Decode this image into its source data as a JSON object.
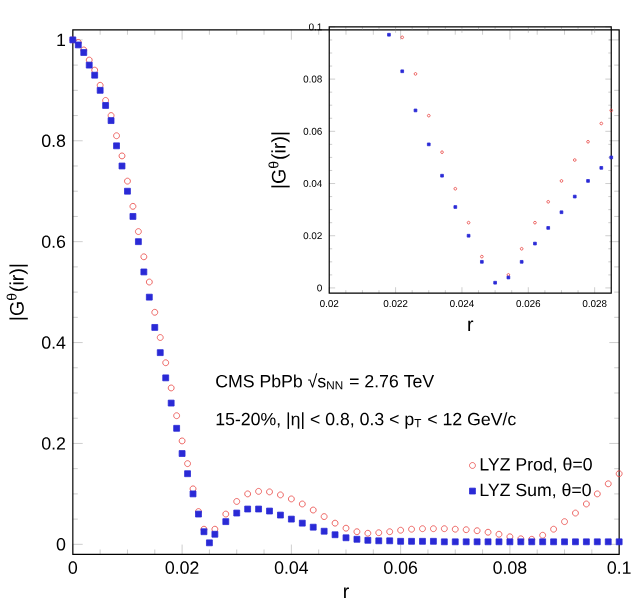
{
  "chart_data": [
    {
      "type": "scatter",
      "xlabel": "r",
      "ylabel": "|G$^{θ}$(ir)|",
      "xlim": [
        0,
        0.1
      ],
      "ylim": [
        -0.02,
        1.02
      ],
      "xticks": [
        0,
        0.02,
        0.04,
        0.06,
        0.08,
        0.1
      ],
      "yticks": [
        0,
        0.2,
        0.4,
        0.6,
        0.8,
        1
      ],
      "annotations": [
        "CMS   PbPb √s$_{NN}$ = 2.76 TeV",
        "15-20%,  |η| < 0.8,  0.3 < p$_{T}$ < 12 GeV/c"
      ],
      "legend": "bottom right",
      "series": [
        {
          "name": "LYZ Prod, θ=0",
          "color": "#e8413f",
          "marker": "circle",
          "x": [
            0,
            0.001,
            0.002,
            0.003,
            0.004,
            0.005,
            0.006,
            0.007,
            0.008,
            0.009,
            0.01,
            0.011,
            0.012,
            0.013,
            0.014,
            0.015,
            0.016,
            0.017,
            0.018,
            0.019,
            0.02,
            0.021,
            0.022,
            0.023,
            0.024,
            0.025,
            0.026,
            0.028,
            0.03,
            0.032,
            0.034,
            0.036,
            0.038,
            0.04,
            0.042,
            0.044,
            0.046,
            0.048,
            0.05,
            0.052,
            0.054,
            0.056,
            0.058,
            0.06,
            0.062,
            0.064,
            0.066,
            0.068,
            0.07,
            0.072,
            0.074,
            0.076,
            0.078,
            0.08,
            0.082,
            0.084,
            0.086,
            0.088,
            0.09,
            0.092,
            0.094,
            0.096,
            0.098,
            0.1
          ],
          "values": [
            1,
            0.995,
            0.98,
            0.96,
            0.94,
            0.91,
            0.88,
            0.85,
            0.81,
            0.77,
            0.72,
            0.67,
            0.62,
            0.57,
            0.52,
            0.46,
            0.41,
            0.36,
            0.31,
            0.255,
            0.205,
            0.16,
            0.11,
            0.065,
            0.03,
            null,
            0.03,
            0.06,
            0.085,
            0.1,
            0.105,
            0.104,
            0.098,
            0.09,
            0.08,
            0.068,
            0.055,
            0.042,
            0.032,
            0.025,
            0.022,
            0.023,
            0.025,
            0.028,
            0.03,
            0.031,
            0.031,
            0.031,
            0.03,
            0.029,
            0.027,
            0.024,
            0.02,
            0.015,
            0.011,
            0.01,
            0.018,
            0.03,
            0.045,
            0.062,
            0.08,
            0.1,
            0.12,
            0.14
          ]
        },
        {
          "name": "LYZ Sum, θ=0",
          "color": "#2a2ad6",
          "marker": "square",
          "x": [
            0,
            0.001,
            0.002,
            0.003,
            0.004,
            0.005,
            0.006,
            0.007,
            0.008,
            0.009,
            0.01,
            0.011,
            0.012,
            0.013,
            0.014,
            0.015,
            0.016,
            0.017,
            0.018,
            0.019,
            0.02,
            0.021,
            0.022,
            0.023,
            0.024,
            0.025,
            0.026,
            0.028,
            0.03,
            0.032,
            0.034,
            0.036,
            0.038,
            0.04,
            0.042,
            0.044,
            0.046,
            0.048,
            0.05,
            0.052,
            0.054,
            0.056,
            0.058,
            0.06,
            0.062,
            0.064,
            0.066,
            0.068,
            0.07,
            0.072,
            0.074,
            0.076,
            0.078,
            0.08,
            0.082,
            0.084,
            0.086,
            0.088,
            0.09,
            0.092,
            0.094,
            0.096,
            0.098,
            0.1
          ],
          "values": [
            1,
            0.99,
            0.975,
            0.95,
            0.93,
            0.9,
            0.87,
            0.84,
            0.79,
            0.75,
            0.7,
            0.65,
            0.6,
            0.54,
            0.49,
            0.43,
            0.38,
            0.33,
            0.28,
            0.23,
            0.18,
            0.14,
            0.1,
            0.06,
            0.025,
            0.003,
            0.02,
            0.045,
            0.062,
            0.07,
            0.07,
            0.066,
            0.058,
            0.05,
            0.042,
            0.034,
            0.026,
            0.019,
            0.013,
            0.01,
            0.008,
            0.007,
            0.007,
            0.006,
            0.006,
            0.006,
            0.006,
            0.005,
            0.005,
            0.005,
            0.005,
            0.005,
            0.005,
            0.005,
            0.005,
            0.005,
            0.005,
            0.005,
            0.005,
            0.005,
            0.005,
            0.005,
            0.005,
            0.005
          ]
        }
      ]
    },
    {
      "type": "scatter",
      "xlabel": "r",
      "ylabel": "|G$^{θ}$(ir)|",
      "xlim": [
        0.02,
        0.0285
      ],
      "ylim": [
        -0.002,
        0.1
      ],
      "xticks": [
        0.02,
        0.022,
        0.024,
        0.026,
        0.028
      ],
      "yticks": [
        0,
        0.02,
        0.04,
        0.06,
        0.08,
        0.1
      ],
      "series": [
        {
          "color": "#e8413f",
          "marker": "circle",
          "x": [
            0.0222,
            0.0226,
            0.023,
            0.0234,
            0.0238,
            0.0242,
            0.0246,
            0.025,
            0.0254,
            0.0258,
            0.0262,
            0.0266,
            0.027,
            0.0274,
            0.0278,
            0.0282,
            0.0285
          ],
          "values": [
            0.096,
            0.082,
            0.066,
            0.052,
            0.038,
            0.025,
            0.012,
            null,
            0.005,
            0.015,
            0.025,
            0.033,
            0.041,
            0.049,
            0.056,
            0.063,
            0.068
          ]
        },
        {
          "color": "#2a2ad6",
          "marker": "square",
          "x": [
            0.0218,
            0.0222,
            0.0226,
            0.023,
            0.0234,
            0.0238,
            0.0242,
            0.0246,
            0.025,
            0.0254,
            0.0258,
            0.0262,
            0.0266,
            0.027,
            0.0274,
            0.0278,
            0.0282,
            0.0285
          ],
          "values": [
            0.097,
            0.083,
            0.068,
            0.055,
            0.043,
            0.031,
            0.02,
            0.01,
            0.002,
            0.004,
            0.01,
            0.017,
            0.023,
            0.029,
            0.035,
            0.041,
            0.046,
            0.05
          ]
        }
      ]
    }
  ]
}
